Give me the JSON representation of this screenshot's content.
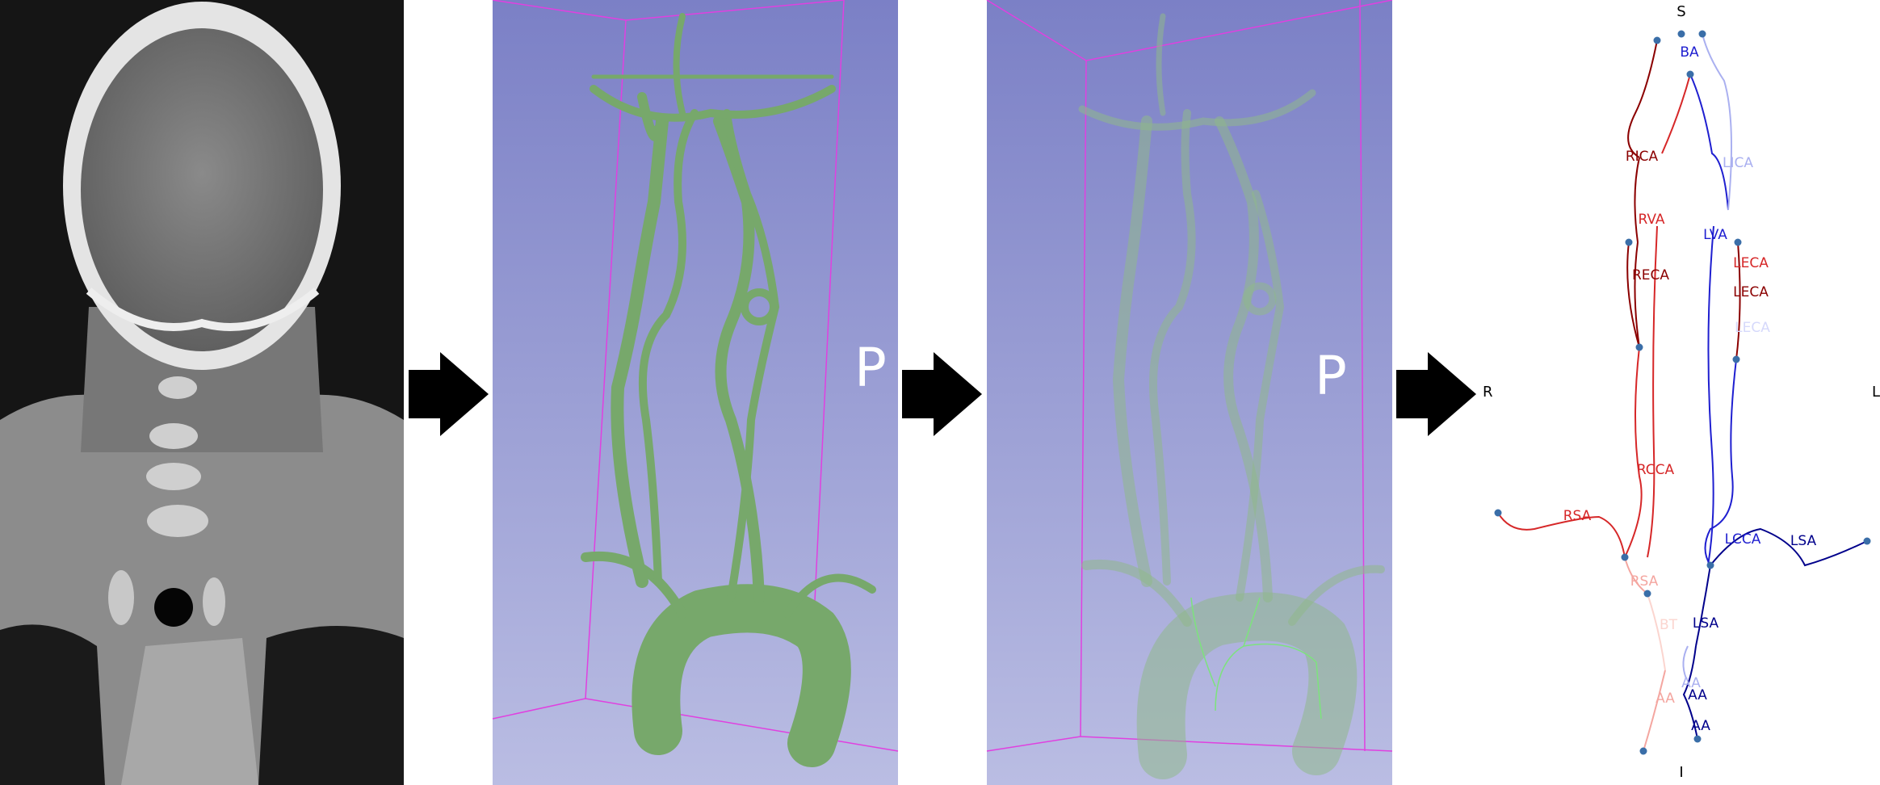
{
  "panels": {
    "mesh_view": {
      "orientation_marker": "P"
    },
    "centerline_view": {
      "orientation_marker": "P"
    }
  },
  "graph": {
    "axis_labels": {
      "top": "S",
      "bottom": "I",
      "left": "R",
      "right": "L"
    },
    "labels": {
      "ba": "BA",
      "rica": "RICA",
      "lica": "LICA",
      "rva": "RVA",
      "lva": "LVA",
      "reca": "RECA",
      "leca_1": "LECA",
      "leca_2": "LECA",
      "leca_3": "LECA",
      "rcca": "RCCA",
      "lcca": "LCCA",
      "rsa_1": "RSA",
      "rsa_2": "RSA",
      "lsa_1": "LSA",
      "lsa_2": "LSA",
      "bt": "BT",
      "aa_1": "AA",
      "aa_2": "AA",
      "aa_3": "AA",
      "aa_4": "AA"
    },
    "colors": {
      "red_dark": "#8b0000",
      "red": "#d62728",
      "red_light": "#f4a6a0",
      "red_pale": "#fbd5cf",
      "blue_dark": "#00008b",
      "blue": "#1f1fd0",
      "blue_light": "#aab0f0",
      "blue_pale": "#d6d9fb",
      "node": "#3a6ea8"
    }
  }
}
